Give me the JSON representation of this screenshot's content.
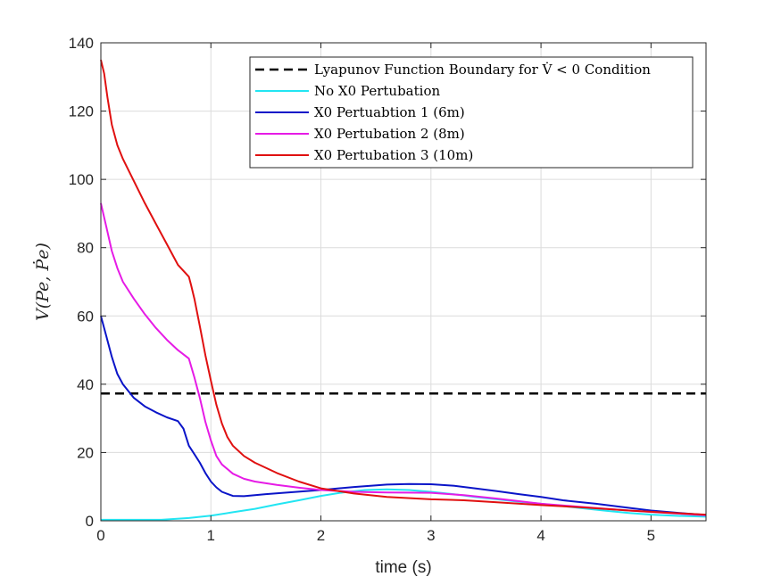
{
  "chart_data": {
    "type": "line",
    "title": "",
    "xlabel": "time (s)",
    "ylabel": "V(Pe, Ṗe)",
    "xlim": [
      0,
      5.5
    ],
    "ylim": [
      0,
      140
    ],
    "xticks": [
      0,
      1,
      2,
      3,
      4,
      5
    ],
    "yticks": [
      0,
      20,
      40,
      60,
      80,
      100,
      120,
      140
    ],
    "grid": true,
    "legend_position": "top-right",
    "colors": {
      "boundary": "#000000",
      "no_perturbation": "#22e5f2",
      "perturbation_1": "#0a14c8",
      "perturbation_2": "#e61be6",
      "perturbation_3": "#e01010"
    },
    "series": [
      {
        "name": "Lyapunov Function Boundary for V̇ < 0 Condition",
        "key": "boundary",
        "style": "dashed",
        "x": [
          0,
          5.5
        ],
        "y": [
          37.3,
          37.3
        ]
      },
      {
        "name": "No X0 Pertubation",
        "key": "no_perturbation",
        "style": "solid",
        "x": [
          0,
          0.3,
          0.55,
          0.8,
          1.0,
          1.2,
          1.4,
          1.6,
          1.8,
          2.0,
          2.2,
          2.4,
          2.6,
          2.8,
          3.0,
          3.2,
          3.4,
          3.6,
          3.8,
          4.0,
          4.2,
          4.4,
          4.6,
          4.8,
          5.0,
          5.2,
          5.5
        ],
        "y": [
          0.3,
          0.3,
          0.3,
          0.8,
          1.5,
          2.5,
          3.5,
          4.8,
          6.0,
          7.3,
          8.3,
          9.0,
          9.2,
          9.0,
          8.5,
          7.8,
          7.0,
          6.3,
          5.6,
          5.0,
          4.3,
          3.6,
          2.9,
          2.3,
          1.8,
          1.5,
          1.2
        ]
      },
      {
        "name": "X0 Pertuabtion 1 (6m)",
        "key": "perturbation_1",
        "style": "solid",
        "x": [
          0,
          0.05,
          0.1,
          0.15,
          0.2,
          0.3,
          0.4,
          0.5,
          0.6,
          0.7,
          0.75,
          0.8,
          0.85,
          0.9,
          0.95,
          1.0,
          1.05,
          1.1,
          1.2,
          1.3,
          1.5,
          1.7,
          2.0,
          2.3,
          2.6,
          2.8,
          3.0,
          3.2,
          3.4,
          3.6,
          3.8,
          4.0,
          4.2,
          4.5,
          4.8,
          5.0,
          5.3,
          5.5
        ],
        "y": [
          60,
          54,
          48,
          43,
          40,
          36,
          33.5,
          31.8,
          30.3,
          29.2,
          27,
          22,
          19.5,
          17,
          14,
          11.5,
          9.8,
          8.5,
          7.3,
          7.2,
          7.8,
          8.3,
          9.0,
          9.9,
          10.6,
          10.8,
          10.7,
          10.3,
          9.5,
          8.7,
          7.8,
          7.0,
          6.0,
          5.0,
          3.8,
          3.0,
          2.2,
          1.7
        ]
      },
      {
        "name": "X0 Pertubation 2 (8m)",
        "key": "perturbation_2",
        "style": "solid",
        "x": [
          0,
          0.05,
          0.1,
          0.15,
          0.2,
          0.3,
          0.4,
          0.5,
          0.6,
          0.7,
          0.8,
          0.85,
          0.9,
          0.95,
          1.0,
          1.05,
          1.1,
          1.2,
          1.3,
          1.4,
          1.6,
          1.8,
          2.0,
          2.3,
          2.6,
          3.0,
          3.3,
          3.6,
          4.0,
          4.4,
          4.8,
          5.2,
          5.5
        ],
        "y": [
          93,
          86,
          79,
          74,
          70,
          65,
          60.5,
          56.5,
          53,
          50,
          47.5,
          42,
          36,
          29,
          23.5,
          19,
          16.5,
          13.8,
          12.3,
          11.5,
          10.5,
          9.7,
          9.0,
          8.5,
          8.3,
          8.2,
          7.5,
          6.5,
          5.0,
          4.0,
          3.0,
          2.2,
          1.6
        ]
      },
      {
        "name": "X0 Pertubation 3 (10m)",
        "key": "perturbation_3",
        "style": "solid",
        "x": [
          0,
          0.03,
          0.06,
          0.1,
          0.15,
          0.2,
          0.3,
          0.4,
          0.5,
          0.6,
          0.7,
          0.8,
          0.82,
          0.85,
          0.9,
          0.95,
          1.0,
          1.05,
          1.1,
          1.15,
          1.2,
          1.3,
          1.4,
          1.6,
          1.8,
          2.0,
          2.3,
          2.6,
          3.0,
          3.3,
          3.6,
          4.0,
          4.4,
          4.8,
          5.2,
          5.5
        ],
        "y": [
          135,
          131,
          124,
          116,
          110,
          106,
          99.5,
          93,
          87,
          81,
          75,
          71.5,
          69,
          65,
          57,
          48.5,
          41,
          34,
          28.5,
          24.5,
          22,
          19,
          17,
          14,
          11.5,
          9.5,
          8.0,
          7.0,
          6.3,
          6.0,
          5.4,
          4.6,
          3.9,
          3.0,
          2.3,
          1.8
        ]
      }
    ]
  }
}
